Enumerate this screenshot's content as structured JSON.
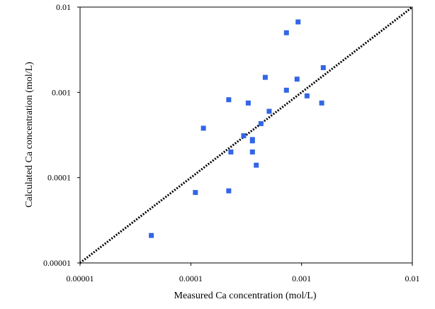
{
  "chart_data": {
    "type": "scatter",
    "title": "",
    "xlabel": "Measured Ca concentration (mol/L)",
    "ylabel": "Calculated Ca concentration (mol/L)",
    "xscale": "log",
    "yscale": "log",
    "xlim": [
      1e-05,
      0.01
    ],
    "ylim": [
      1e-05,
      0.01
    ],
    "xticks": [
      "0.00001",
      "0.0001",
      "0.001",
      "0.01"
    ],
    "yticks": [
      "0.00001",
      "0.0001",
      "0.001",
      "0.01"
    ],
    "grid": false,
    "legend": "none",
    "marker_color": "#3366e6",
    "reference_line": {
      "label": "1:1",
      "style": "dotted",
      "color": "#000000",
      "from": [
        1e-05,
        1e-05
      ],
      "to": [
        0.01,
        0.01
      ]
    },
    "series": [
      {
        "name": "Ca",
        "points": [
          [
            4.4e-05,
            2.1e-05
          ],
          [
            0.00011,
            6.7e-05
          ],
          [
            0.00013,
            0.00038
          ],
          [
            0.00022,
            0.00082
          ],
          [
            0.00022,
            7e-05
          ],
          [
            0.00023,
            0.0002
          ],
          [
            0.0003,
            0.00031
          ],
          [
            0.00033,
            0.00075
          ],
          [
            0.00036,
            0.00028
          ],
          [
            0.00036,
            0.00027
          ],
          [
            0.00036,
            0.0002
          ],
          [
            0.00039,
            0.00014
          ],
          [
            0.00043,
            0.00043
          ],
          [
            0.00047,
            0.0015
          ],
          [
            0.00051,
            0.0006
          ],
          [
            0.00073,
            0.005
          ],
          [
            0.00073,
            0.00106
          ],
          [
            0.00091,
            0.00143
          ],
          [
            0.00093,
            0.0067
          ],
          [
            0.00112,
            0.00091
          ],
          [
            0.00152,
            0.00075
          ],
          [
            0.00157,
            0.00195
          ]
        ]
      }
    ]
  }
}
